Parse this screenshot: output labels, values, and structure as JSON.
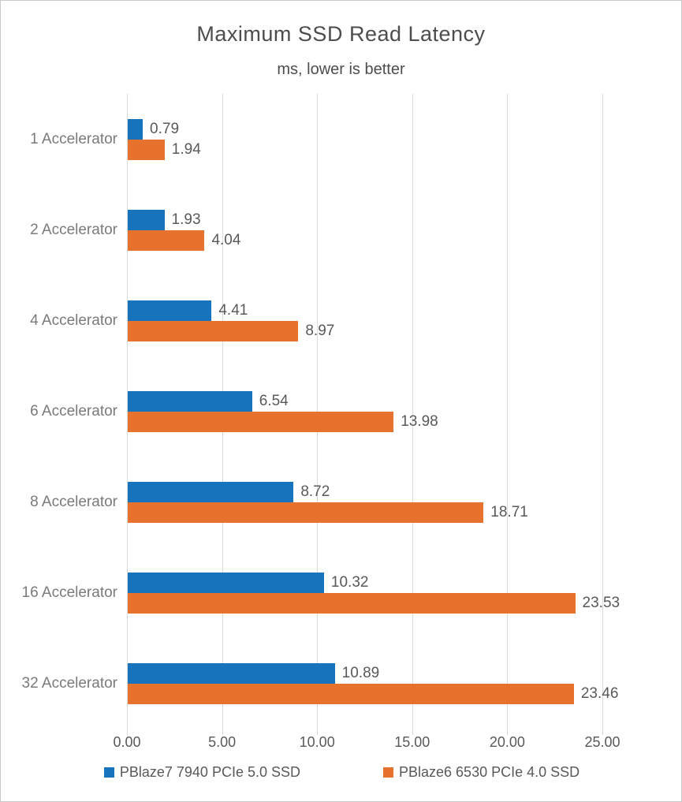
{
  "chart_data": {
    "type": "bar",
    "orientation": "horizontal",
    "title": "Maximum SSD Read Latency",
    "subtitle": "ms, lower is better",
    "categories": [
      "1 Accelerator",
      "2 Accelerator",
      "4 Accelerator",
      "6 Accelerator",
      "8 Accelerator",
      "16 Accelerator",
      "32 Accelerator"
    ],
    "series": [
      {
        "name": "PBlaze7 7940 PCIe 5.0 SSD",
        "color": "#1673bc",
        "values": [
          0.79,
          1.93,
          4.41,
          6.54,
          8.72,
          10.32,
          10.89
        ],
        "labels": [
          "0.79",
          "1.93",
          "4.41",
          "6.54",
          "8.72",
          "10.32",
          "10.89"
        ]
      },
      {
        "name": "PBlaze6 6530 PCIe 4.0 SSD",
        "color": "#e7722e",
        "values": [
          1.94,
          4.04,
          8.97,
          13.98,
          18.71,
          23.53,
          23.46
        ],
        "labels": [
          "1.94",
          "4.04",
          "8.97",
          "13.98",
          "18.71",
          "23.53",
          "23.46"
        ]
      }
    ],
    "xlim": [
      0,
      25
    ],
    "x_ticks": [
      {
        "value": 0,
        "label": "0.00"
      },
      {
        "value": 5,
        "label": "5.00"
      },
      {
        "value": 10,
        "label": "10.00"
      },
      {
        "value": 15,
        "label": "15.00"
      },
      {
        "value": 20,
        "label": "20.00"
      },
      {
        "value": 25,
        "label": "25.00"
      }
    ],
    "grid": "vertical",
    "legend_position": "bottom",
    "gridline_color": "#d9d9d9",
    "text_color": "#595959",
    "category_label_color": "#7a7a7a"
  }
}
